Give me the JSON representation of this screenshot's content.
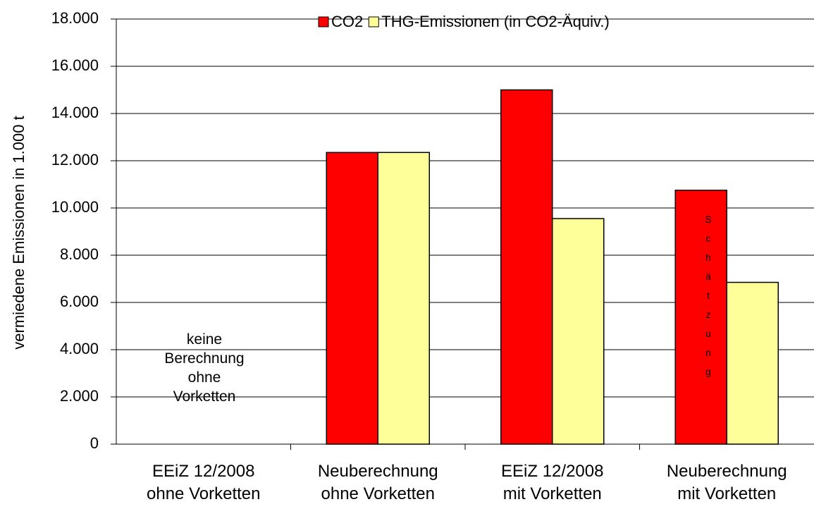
{
  "chart_data": {
    "type": "bar",
    "y_axis_label": "vermiedene Emissionen in 1.000 t",
    "categories": [
      "EEiZ 12/2008\nohne Vorketten",
      "Neuberechnung\nohne Vorketten",
      "EEiZ 12/2008\nmit Vorketten",
      "Neuberechnung\nmit Vorketten"
    ],
    "series": [
      {
        "name": "CO2",
        "color": "#ff0000",
        "values": [
          null,
          12350,
          15000,
          10750
        ]
      },
      {
        "name": "THG-Emissionen (in CO2-Äquiv.)",
        "color": "#ffff99",
        "values": [
          null,
          12350,
          9550,
          6850
        ]
      }
    ],
    "ylim": [
      0,
      18000
    ],
    "yticks": [
      0,
      {
        "value": 2000,
        "label": "2.000"
      },
      {
        "value": 4000,
        "label": "4.000"
      },
      {
        "value": 6000,
        "label": "6.000"
      },
      {
        "value": 8000,
        "label": "8.000"
      },
      {
        "value": 10000,
        "label": "10.000"
      },
      {
        "value": 12000,
        "label": "12.000"
      },
      {
        "value": 14000,
        "label": "14.000"
      },
      {
        "value": 16000,
        "label": "16.000"
      },
      {
        "value": 18000,
        "label": "18.000"
      }
    ],
    "grid": true,
    "legend": "top",
    "annotations": [
      "keine\nBerechnung\nohne\nVorketten",
      "Schätzung"
    ]
  }
}
